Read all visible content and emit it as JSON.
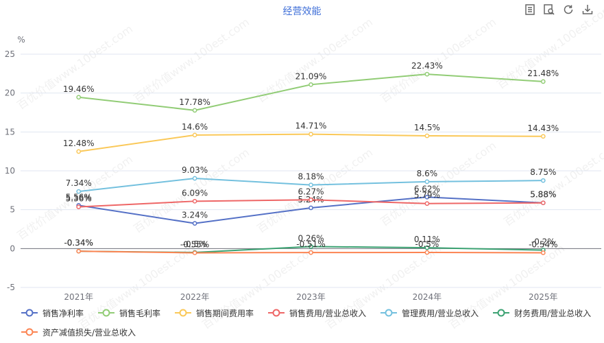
{
  "title": "经营效能",
  "toolbar": [
    {
      "name": "data-view-icon"
    },
    {
      "name": "data-zoom-icon"
    },
    {
      "name": "restore-icon"
    },
    {
      "name": "save-image-icon"
    }
  ],
  "watermark": "百优价值www.100est.com",
  "chart_data": {
    "type": "line",
    "ylabel": "%",
    "ylim": [
      -5,
      25
    ],
    "yticks": [
      -5,
      0,
      5,
      10,
      15,
      20,
      25
    ],
    "categories": [
      "2021年",
      "2022年",
      "2023年",
      "2024年",
      "2025年"
    ],
    "grid": true,
    "legend_position": "bottom",
    "series": [
      {
        "name": "销售净利率",
        "color": "#5470c6",
        "values": [
          5.56,
          3.24,
          5.24,
          6.62,
          5.88
        ],
        "labels": [
          "5.56%",
          "3.24%",
          "5.24%",
          "6.62%",
          "5.88%"
        ]
      },
      {
        "name": "销售毛利率",
        "color": "#91cc75",
        "values": [
          19.46,
          17.78,
          21.09,
          22.43,
          21.48
        ],
        "labels": [
          "19.46%",
          "17.78%",
          "21.09%",
          "22.43%",
          "21.48%"
        ]
      },
      {
        "name": "销售期间费用率",
        "color": "#fac858",
        "values": [
          12.48,
          14.6,
          14.71,
          14.5,
          14.43
        ],
        "labels": [
          "12.48%",
          "14.6%",
          "14.71%",
          "14.5%",
          "14.43%"
        ]
      },
      {
        "name": "销售费用/营业总收入",
        "color": "#ee6666",
        "values": [
          5.36,
          6.09,
          6.27,
          5.79,
          5.88
        ],
        "labels": [
          "5.36%",
          "6.09%",
          "6.27%",
          "5.79%",
          "5.88%"
        ]
      },
      {
        "name": "管理费用/营业总收入",
        "color": "#73c0de",
        "values": [
          7.34,
          9.03,
          8.18,
          8.6,
          8.75
        ],
        "labels": [
          "7.34%",
          "9.03%",
          "8.18%",
          "8.6%",
          "8.75%"
        ]
      },
      {
        "name": "财务费用/营业总收入",
        "color": "#3ba272",
        "values": [
          -0.34,
          -0.5,
          0.26,
          0.11,
          -0.2
        ],
        "labels": [
          "-0.34%",
          "-0.5%",
          "0.26%",
          "0.11%",
          "-0.2%"
        ]
      },
      {
        "name": "资产减值损失/营业总收入",
        "color": "#fc8452",
        "values": [
          -0.34,
          -0.55,
          -0.51,
          -0.5,
          -0.54
        ],
        "labels": [
          "-0.34%",
          "-0.55%",
          "-0.51%",
          "-0.5%",
          "-0.54%"
        ]
      }
    ]
  }
}
